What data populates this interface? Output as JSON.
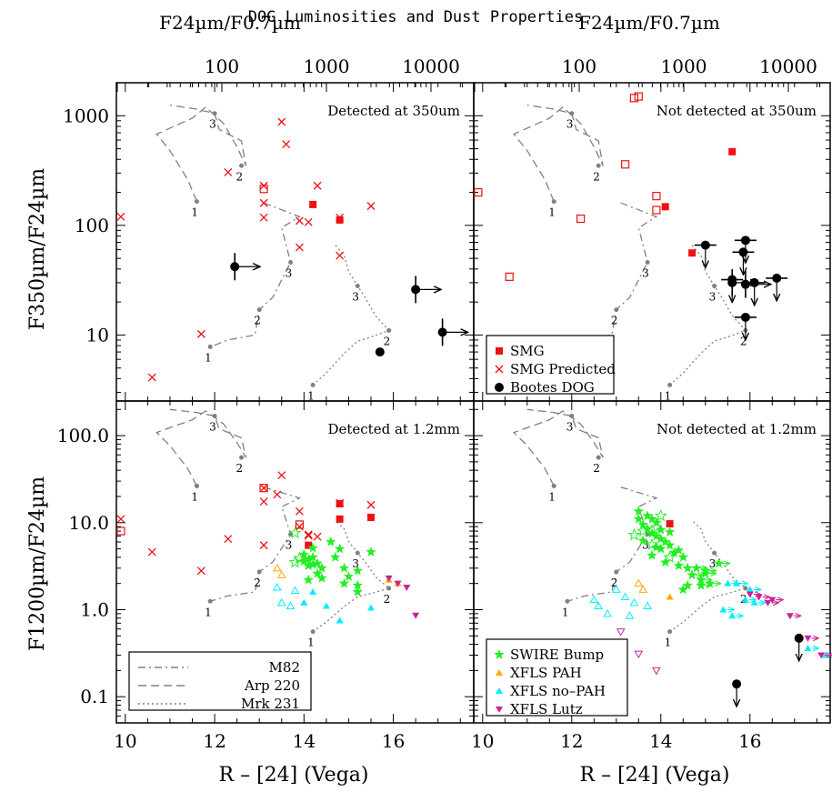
{
  "figure": {
    "title": "DOG Luminosities and Dust Properties",
    "top_axis_label": "F24µm/F0.7µm",
    "bottom_axis_label": "R – [24] (Vega)",
    "left_axis_label_top": "F350µm/F24µm",
    "left_axis_label_bottom": "F1200µm/F24µm",
    "top_ticks": [
      "100",
      "1000",
      "10000"
    ],
    "bottom_ticks": [
      "10",
      "12",
      "14",
      "16"
    ],
    "y_ticks_top": [
      "10",
      "100",
      "1000"
    ],
    "y_ticks_bottom": [
      "0.1",
      "1.0",
      "10.0",
      "100.0"
    ],
    "legend_top": [
      "SMG",
      "SMG Predicted",
      "Bootes DOG"
    ],
    "legend_bottom_left": [
      "M82",
      "Arp 220",
      "Mrk 231"
    ],
    "legend_bottom_right": [
      "SWIRE Bump",
      "XFLS PAH",
      "XFLS no–PAH",
      "XFLS Lutz"
    ],
    "colors": {
      "smg": "#ee1111",
      "swire": "#22ee22",
      "xfls_pah": "#ffaa00",
      "xfls_nopah": "#00eeff",
      "xfls_lutz": "#cc2299",
      "template": "#808080"
    }
  },
  "chart_data": [
    {
      "panel": "top-left",
      "type": "scatter",
      "annotation": "Detected at 350um",
      "xlim": [
        9.8,
        17.8
      ],
      "ylim": [
        2.5,
        2000
      ],
      "ylog": true,
      "series": {
        "smg": [
          [
            14.2,
            155
          ],
          [
            14.8,
            112
          ]
        ],
        "smg_predicted_upper": [
          [
            9.9,
            120
          ],
          [
            12.3,
            305
          ],
          [
            13.1,
            230
          ],
          [
            13.5,
            880
          ],
          [
            13.6,
            550
          ],
          [
            14.3,
            230
          ],
          [
            13.1,
            160
          ],
          [
            13.1,
            118
          ],
          [
            13.9,
            110
          ],
          [
            14.1,
            107
          ],
          [
            14.8,
            118
          ],
          [
            15.5,
            150
          ],
          [
            13.9,
            63
          ],
          [
            14.8,
            53
          ],
          [
            11.7,
            10.2
          ],
          [
            10.6,
            4.1
          ]
        ],
        "smg_predicted_open": [
          [
            13.1,
            215
          ]
        ],
        "dog_detected": [
          [
            15.7,
            7.0
          ]
        ],
        "dog_lower_limit_x": [
          [
            12.45,
            42
          ],
          [
            16.5,
            26
          ],
          [
            17.1,
            10.6
          ]
        ]
      },
      "templates": {
        "m82": [
          [
            13.1,
            160
          ],
          [
            13.9,
            120
          ],
          [
            13.5,
            95
          ],
          [
            13.7,
            46
          ],
          [
            13.3,
            22
          ],
          [
            13.0,
            17
          ],
          [
            12.9,
            10
          ],
          [
            12.3,
            9.0
          ],
          [
            11.9,
            7.8
          ]
        ],
        "arp220": [
          [
            11.6,
            165
          ],
          [
            11.4,
            260
          ],
          [
            11.0,
            480
          ],
          [
            10.7,
            680
          ],
          [
            11.5,
            950
          ],
          [
            11.8,
            1200
          ],
          [
            12.2,
            850
          ],
          [
            12.5,
            520
          ],
          [
            12.7,
            350
          ],
          [
            12.6,
            590
          ],
          [
            12.1,
            750
          ],
          [
            12.0,
            1050
          ],
          [
            11.6,
            1150
          ],
          [
            11.0,
            1250
          ]
        ],
        "mrk231": [
          [
            14.2,
            3.5
          ],
          [
            14.5,
            4.5
          ],
          [
            14.9,
            6.8
          ],
          [
            15.2,
            8.8
          ],
          [
            15.5,
            9.6
          ],
          [
            15.9,
            11.0
          ],
          [
            15.6,
            15
          ],
          [
            15.4,
            21
          ],
          [
            15.2,
            28
          ],
          [
            15.0,
            38
          ],
          [
            14.9,
            53
          ],
          [
            14.7,
            66
          ]
        ]
      },
      "template_labels": [
        [
          "1",
          11.6,
          165
        ],
        [
          "2",
          12.6,
          350
        ],
        [
          "3",
          12.0,
          1050
        ],
        [
          "1",
          11.9,
          7.8
        ],
        [
          "2",
          13.0,
          17
        ],
        [
          "3",
          13.7,
          46
        ],
        [
          "1",
          14.2,
          3.5
        ],
        [
          "2",
          15.9,
          11.0
        ],
        [
          "3",
          15.2,
          28
        ]
      ]
    },
    {
      "panel": "top-right",
      "type": "scatter",
      "annotation": "Not detected at 350um",
      "xlim": [
        9.8,
        17.8
      ],
      "ylim": [
        2.5,
        2000
      ],
      "ylog": true,
      "series": {
        "smg": [
          [
            15.6,
            470
          ],
          [
            14.1,
            148
          ],
          [
            14.7,
            56
          ]
        ],
        "smg_open": [
          [
            9.9,
            200
          ],
          [
            13.4,
            1450
          ],
          [
            13.5,
            1500
          ],
          [
            13.2,
            360
          ],
          [
            12.2,
            115
          ],
          [
            10.6,
            34
          ],
          [
            13.9,
            185
          ],
          [
            13.9,
            138
          ]
        ],
        "dog_upper_limit_y": [
          [
            15.0,
            66
          ],
          [
            15.9,
            73
          ],
          [
            15.85,
            57
          ],
          [
            15.6,
            32
          ],
          [
            16.1,
            30
          ],
          [
            16.6,
            33
          ],
          [
            15.9,
            14.5
          ]
        ],
        "dog_lower_limit_x": [
          [
            15.6,
            30
          ],
          [
            15.9,
            29
          ]
        ]
      },
      "legend_placement": "bottom-left"
    },
    {
      "panel": "bottom-left",
      "type": "scatter",
      "annotation": "Detected at 1.2mm",
      "xlim": [
        9.8,
        17.8
      ],
      "ylim": [
        0.05,
        250
      ],
      "ylog": true,
      "series": {
        "smg": [
          [
            14.8,
            16.5
          ],
          [
            14.8,
            11
          ],
          [
            15.5,
            11.5
          ],
          [
            14.1,
            5.5
          ]
        ],
        "smg_predicted_upper": [
          [
            9.9,
            11
          ],
          [
            10.6,
            4.6
          ],
          [
            11.7,
            2.8
          ],
          [
            12.3,
            6.5
          ],
          [
            13.1,
            25
          ],
          [
            13.1,
            17.5
          ],
          [
            13.1,
            5.5
          ],
          [
            13.4,
            21
          ],
          [
            13.5,
            35
          ],
          [
            13.9,
            13.5
          ],
          [
            13.9,
            9
          ],
          [
            14.1,
            7.1
          ],
          [
            14.3,
            6.9
          ],
          [
            14.8,
            16.8
          ],
          [
            15.5,
            16
          ],
          [
            14.1,
            7.3
          ]
        ],
        "smg_predicted_open": [
          [
            9.9,
            8
          ],
          [
            13.1,
            25
          ],
          [
            13.9,
            9.5
          ]
        ],
        "swire_filled": [
          [
            14.0,
            4.3
          ],
          [
            14.2,
            4.0
          ],
          [
            14.1,
            3.8
          ],
          [
            14.2,
            3.3
          ],
          [
            14.1,
            3.2
          ],
          [
            14.3,
            3.4
          ],
          [
            14.4,
            3.0
          ],
          [
            14.3,
            2.6
          ],
          [
            14.4,
            2.3
          ],
          [
            14.1,
            2.2
          ],
          [
            14.6,
            6.0
          ],
          [
            14.8,
            5.0
          ],
          [
            14.7,
            4.0
          ],
          [
            14.9,
            3.0
          ],
          [
            15.0,
            2.4
          ],
          [
            15.2,
            1.9
          ],
          [
            15.2,
            1.6
          ],
          [
            15.5,
            4.6
          ],
          [
            14.9,
            2.0
          ],
          [
            15.2,
            2.8
          ],
          [
            14.0,
            3.6
          ],
          [
            14.2,
            5.1
          ]
        ],
        "swire_open": [
          [
            13.8,
            7.6
          ],
          [
            13.9,
            3.9
          ],
          [
            13.8,
            3.5
          ]
        ],
        "xfls_pah_filled": [
          [
            15.9,
            2.2
          ],
          [
            16.1,
            2.0
          ]
        ],
        "xfls_pah_open": [
          [
            13.4,
            3.0
          ],
          [
            13.5,
            2.5
          ]
        ],
        "xfls_nopah_filled": [
          [
            14.0,
            1.2
          ],
          [
            14.2,
            1.6
          ],
          [
            14.8,
            0.75
          ],
          [
            15.5,
            1.05
          ],
          [
            14.5,
            1.1
          ]
        ],
        "xfls_nopah_open": [
          [
            13.4,
            1.8
          ],
          [
            13.5,
            1.2
          ],
          [
            13.7,
            1.1
          ],
          [
            13.8,
            1.65
          ]
        ],
        "xfls_lutz_filled": [
          [
            15.9,
            2.3
          ],
          [
            16.1,
            2.0
          ],
          [
            16.3,
            1.8
          ],
          [
            16.5,
            0.86
          ]
        ]
      },
      "legend_placement": "bottom-left"
    },
    {
      "panel": "bottom-right",
      "type": "scatter",
      "annotation": "Not detected at 1.2mm",
      "xlim": [
        9.8,
        17.8
      ],
      "ylim": [
        0.05,
        250
      ],
      "ylog": true,
      "series": {
        "smg": [
          [
            14.2,
            9.7
          ]
        ],
        "swire_filled": [
          [
            13.5,
            13.5
          ],
          [
            13.7,
            12
          ],
          [
            13.8,
            11
          ],
          [
            13.9,
            10
          ],
          [
            13.6,
            9.5
          ],
          [
            13.7,
            8.5
          ],
          [
            13.8,
            7.5
          ],
          [
            13.9,
            7
          ],
          [
            14.0,
            6.5
          ],
          [
            14.1,
            6
          ],
          [
            14.2,
            5.5
          ],
          [
            13.9,
            5.2
          ],
          [
            14.0,
            5.0
          ],
          [
            14.3,
            4.5
          ],
          [
            14.5,
            4.0
          ],
          [
            14.1,
            3.5
          ],
          [
            14.4,
            3.2
          ],
          [
            14.6,
            3.0
          ],
          [
            14.8,
            3.0
          ],
          [
            15.0,
            2.8
          ],
          [
            15.3,
            3.4
          ],
          [
            14.7,
            2.5
          ],
          [
            14.9,
            2.2
          ],
          [
            14.6,
            1.9
          ],
          [
            15.1,
            2.0
          ],
          [
            14.9,
            1.9
          ],
          [
            14.5,
            1.7
          ],
          [
            15.0,
            2.6
          ],
          [
            13.6,
            6.2
          ],
          [
            14.2,
            7.8
          ],
          [
            13.5,
            11
          ],
          [
            14.0,
            8.3
          ],
          [
            14.4,
            4.8
          ],
          [
            13.8,
            4.2
          ]
        ],
        "swire_open": [
          [
            13.6,
            8.0
          ],
          [
            13.9,
            8.8
          ],
          [
            13.4,
            7.2
          ],
          [
            14.0,
            12
          ],
          [
            13.8,
            5.6
          ],
          [
            14.2,
            4.0
          ]
        ],
        "xfls_pah_filled": [
          [
            14.2,
            1.4
          ]
        ],
        "xfls_pah_open": [
          [
            13.5,
            2.0
          ],
          [
            13.6,
            1.7
          ]
        ],
        "xfls_nopah_filled": [
          [
            15.5,
            2.0
          ],
          [
            15.7,
            2.0
          ],
          [
            16.0,
            1.7
          ],
          [
            15.9,
            1.3
          ],
          [
            15.4,
            1.0
          ],
          [
            15.6,
            0.85
          ],
          [
            16.1,
            1.2
          ],
          [
            17.3,
            0.36
          ],
          [
            17.7,
            0.3
          ]
        ],
        "xfls_nopah_open": [
          [
            12.5,
            1.3
          ],
          [
            12.6,
            1.1
          ],
          [
            13.2,
            1.4
          ],
          [
            13.4,
            1.2
          ],
          [
            13.7,
            1.1
          ],
          [
            12.8,
            0.9
          ],
          [
            13.3,
            0.85
          ],
          [
            13.0,
            1.7
          ]
        ],
        "xfls_lutz_filled": [
          [
            16.0,
            1.5
          ],
          [
            16.2,
            1.4
          ],
          [
            16.4,
            1.2
          ],
          [
            16.5,
            1.3
          ],
          [
            16.9,
            0.85
          ],
          [
            17.3,
            0.47
          ],
          [
            17.6,
            0.3
          ]
        ],
        "xfls_lutz_open": [
          [
            13.1,
            0.56
          ],
          [
            13.5,
            0.31
          ],
          [
            13.9,
            0.2
          ]
        ],
        "dog_upper_limit_y": [
          [
            15.7,
            0.14
          ],
          [
            17.1,
            0.47
          ]
        ]
      },
      "legend_placement": "bottom-left"
    }
  ]
}
